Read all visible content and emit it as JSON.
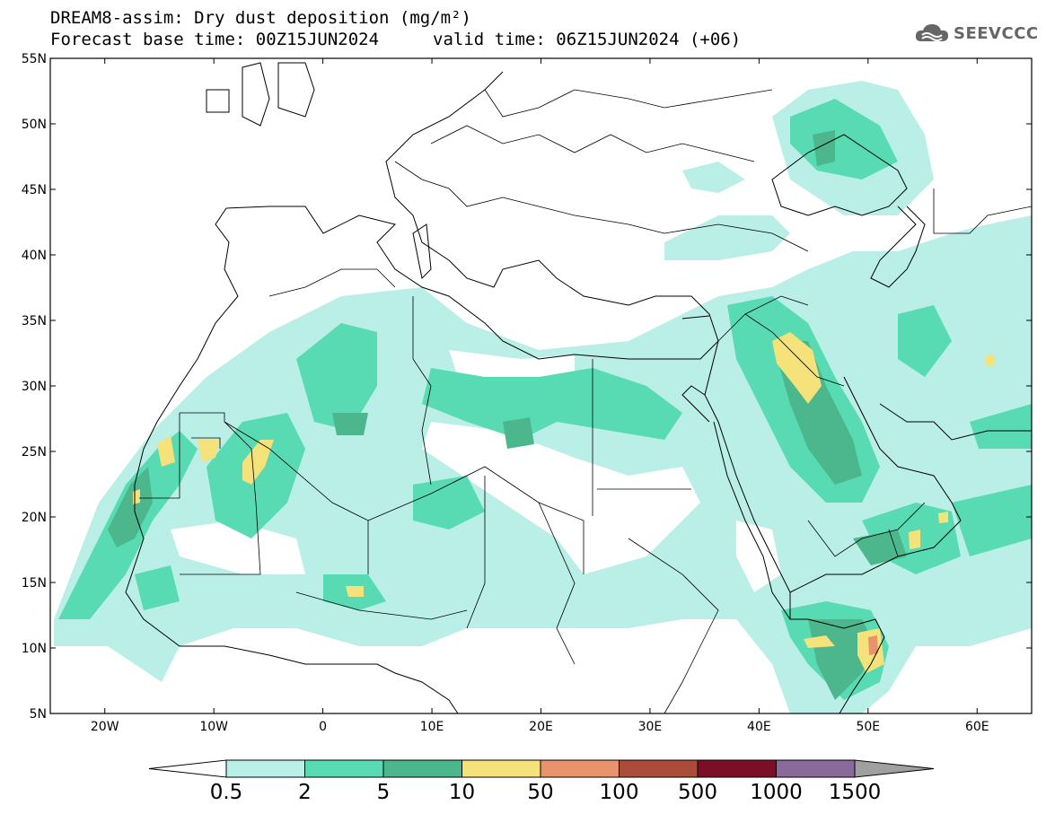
{
  "title": {
    "line1": "DREAM8-assim: Dry dust deposition (mg/m²)",
    "line2a": "Forecast base time: 00Z15JUN2024",
    "line2b": "valid time: 06Z15JUN2024 (+06)"
  },
  "logo": {
    "text": "SEEVCCC",
    "icon": "cloud-logo-icon"
  },
  "map": {
    "lon_range": [
      -25,
      65
    ],
    "lat_range": [
      5,
      55
    ],
    "lat_ticks": [
      "55N",
      "50N",
      "45N",
      "40N",
      "35N",
      "30N",
      "25N",
      "20N",
      "15N",
      "10N",
      "5N"
    ],
    "lon_ticks": [
      "20W",
      "10W",
      "0",
      "10E",
      "20E",
      "30E",
      "40E",
      "50E",
      "60E"
    ]
  },
  "colorbar": {
    "labels": [
      "0.5",
      "2",
      "5",
      "10",
      "50",
      "100",
      "500",
      "1000",
      "1500"
    ],
    "colors": [
      "#b9efe6",
      "#58dbb2",
      "#4cb68d",
      "#f5e27a",
      "#e8936b",
      "#ab4b3a",
      "#7b0f28",
      "#8a6a9a",
      "#a0a0a0"
    ]
  },
  "legend_colors": {
    "c1": "#b9efe6",
    "c2": "#58dbb2",
    "c3": "#4cb68d",
    "c4": "#f5e27a",
    "c5": "#e8936b"
  }
}
